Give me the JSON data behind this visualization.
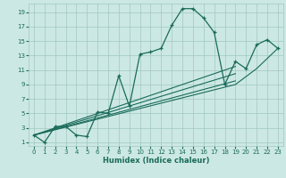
{
  "title": "",
  "xlabel": "Humidex (Indice chaleur)",
  "bg_color": "#cce8e4",
  "grid_color": "#a0c8c0",
  "line_color": "#1a6b5a",
  "x_ticks": [
    0,
    1,
    2,
    3,
    4,
    5,
    6,
    7,
    8,
    9,
    10,
    11,
    12,
    13,
    14,
    15,
    16,
    17,
    18,
    19,
    20,
    21,
    22,
    23
  ],
  "y_ticks": [
    1,
    3,
    5,
    7,
    9,
    11,
    13,
    15,
    17,
    19
  ],
  "xlim": [
    -0.5,
    23.5
  ],
  "ylim": [
    0.5,
    20.2
  ],
  "main_x": [
    0,
    1,
    2,
    3,
    4,
    5,
    6,
    7,
    8,
    9,
    10,
    11,
    12,
    13,
    14,
    15,
    16,
    17,
    18,
    19,
    20,
    21,
    22,
    23
  ],
  "main_y": [
    2,
    1,
    3.2,
    3.2,
    2,
    1.8,
    5.2,
    5,
    10.2,
    6,
    13.2,
    13.5,
    14,
    17.2,
    19.5,
    19.5,
    18.2,
    16.2,
    9,
    12.2,
    11.2,
    14.5,
    15.2,
    14
  ],
  "line1_x": [
    0,
    19
  ],
  "line1_y": [
    2,
    11.5
  ],
  "line2_x": [
    0,
    19
  ],
  "line2_y": [
    2,
    10.5
  ],
  "line3_x": [
    0,
    19
  ],
  "line3_y": [
    2,
    9.5
  ],
  "line4_x": [
    0,
    19,
    21,
    23
  ],
  "line4_y": [
    2,
    9,
    11.2,
    14
  ]
}
